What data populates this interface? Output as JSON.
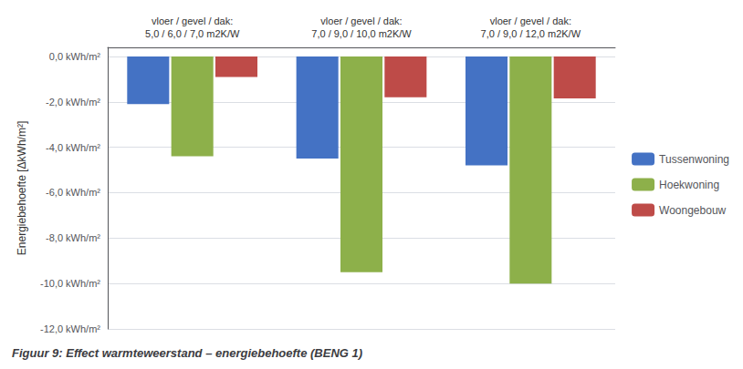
{
  "chart_data": {
    "type": "bar",
    "title": "Figuur 9: Effect warmteweerstand – energiebehoefte (BENG 1)",
    "categories": [
      "vloer / gevel / dak:\n5,0 / 6,0 / 7,0 m2K/W",
      "vloer / gevel / dak:\n7,0 / 9,0 / 10,0 m2K/W",
      "vloer / gevel / dak:\n7,0 / 9,0 / 12,0 m2K/W"
    ],
    "series": [
      {
        "name": "Tussenwoning",
        "color": "#4472C4",
        "values": [
          -2.1,
          -4.5,
          -4.8
        ]
      },
      {
        "name": "Hoekwoning",
        "color": "#8DB04A",
        "values": [
          -4.4,
          -9.5,
          -10.0
        ]
      },
      {
        "name": "Woongebouw",
        "color": "#BE4B48",
        "values": [
          -0.9,
          -1.8,
          -1.85
        ]
      }
    ],
    "y_label": "Energiebehoefte [ΔkWh/m²]",
    "ylim": [
      -12.0,
      0.4
    ],
    "yticks": [
      {
        "value": 0.0,
        "label": "0,0 kWh/m²"
      },
      {
        "value": -2.0,
        "label": "-2,0 kWh/m²"
      },
      {
        "value": -4.0,
        "label": "-4,0 kWh/m²"
      },
      {
        "value": -6.0,
        "label": "-6,0 kWh/m²"
      },
      {
        "value": -8.0,
        "label": "-8,0 kWh/m²"
      },
      {
        "value": -10.0,
        "label": "-10,0 kWh/m²"
      },
      {
        "value": -12.0,
        "label": "-12,0 kWh/m²"
      }
    ],
    "grid": true,
    "legend": "right"
  }
}
